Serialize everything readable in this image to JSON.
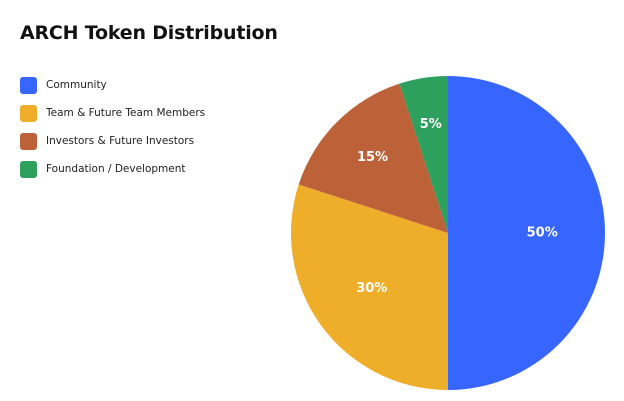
{
  "chart_data": {
    "type": "pie",
    "title": "ARCH Token Distribution",
    "legend_position": "top-left",
    "categories": [
      "Community",
      "Team & Future Team Members",
      "Investors & Future Investors",
      "Foundation / Development"
    ],
    "values": [
      50,
      30,
      15,
      5
    ],
    "data_labels": [
      "50%",
      "30%",
      "15%",
      "5%"
    ],
    "colors": [
      "#3765ff",
      "#efae2a",
      "#bd6139",
      "#2ea05e"
    ]
  }
}
